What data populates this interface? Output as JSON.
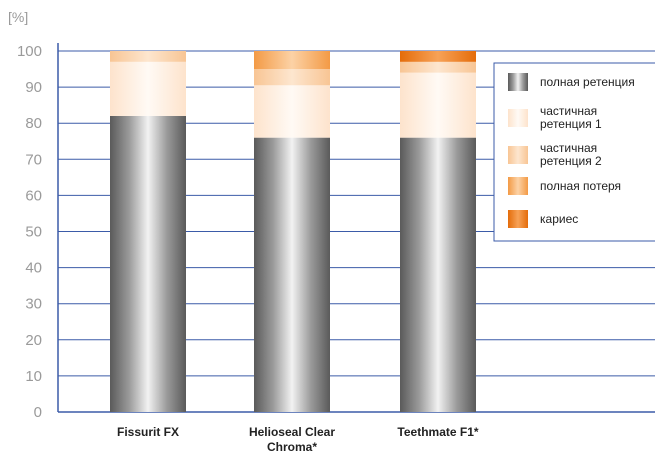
{
  "chart_data": {
    "type": "bar",
    "stacked": true,
    "title": "",
    "ylabel": "[%]",
    "xlabel": "",
    "ylim": [
      0,
      100
    ],
    "yticks": [
      0,
      10,
      20,
      30,
      40,
      50,
      60,
      70,
      80,
      90,
      100
    ],
    "grid": true,
    "legend_position": "right",
    "categories": [
      "Fissurit FX",
      "Helioseal Clear Chroma*",
      "Teethmate F1*"
    ],
    "series": [
      {
        "name": "полная ретенция",
        "label_lines": [
          "полная ретенция"
        ],
        "values": [
          82,
          76,
          76
        ],
        "color": "#7a7a7a",
        "style": "metallic"
      },
      {
        "name": "частичная ретенция 1",
        "label_lines": [
          "частичная",
          "ретенция 1"
        ],
        "values": [
          15,
          14.5,
          18
        ],
        "color": "#fde9d6",
        "style": "pale"
      },
      {
        "name": "частичная ретенция 2",
        "label_lines": [
          "частичная",
          "ретенция 2"
        ],
        "values": [
          3,
          4.5,
          3
        ],
        "color": "#fbd2a9",
        "style": "light"
      },
      {
        "name": "полная потеря",
        "label_lines": [
          "полная потеря"
        ],
        "values": [
          0,
          5,
          0
        ],
        "color": "#f6a95a",
        "style": "medium"
      },
      {
        "name": "кариес",
        "label_lines": [
          "кариес"
        ],
        "values": [
          0,
          0,
          3
        ],
        "color": "#ea7a18",
        "style": "dark"
      }
    ]
  }
}
